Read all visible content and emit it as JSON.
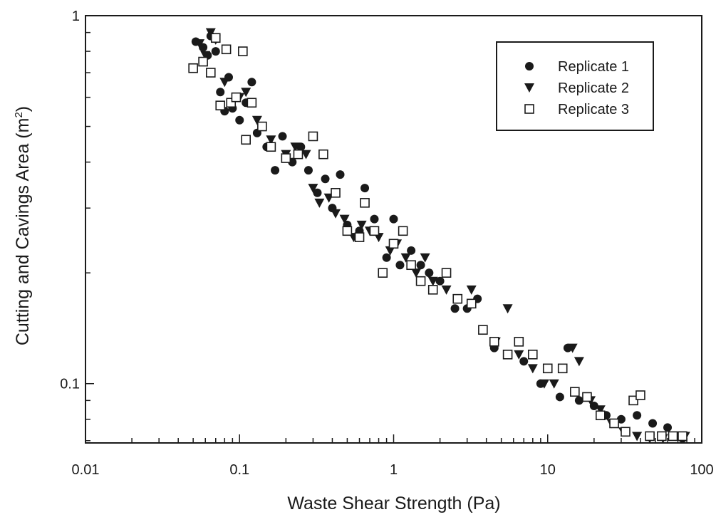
{
  "chart_data": {
    "type": "scatter",
    "xlabel": "Waste Shear Strength (Pa)",
    "ylabel": "Cutting and Cavings Area (m",
    "ylabel_sup": "2",
    "ylabel_close": ")",
    "x_scale": "log",
    "y_scale": "log",
    "xlim": [
      0.01,
      100
    ],
    "ylim": [
      0.069,
      1
    ],
    "x_ticks": [
      0.01,
      0.1,
      1,
      10,
      100
    ],
    "x_tick_labels": [
      "0.01",
      "0.1",
      "1",
      "10",
      "100"
    ],
    "y_ticks": [
      0.1,
      1
    ],
    "y_tick_labels": [
      "0.1",
      "1"
    ],
    "grid": false,
    "legend_position": "top-right",
    "series": [
      {
        "name": "Replicate 1",
        "marker": "circle-filled",
        "points": [
          [
            0.052,
            0.85
          ],
          [
            0.058,
            0.82
          ],
          [
            0.062,
            0.78
          ],
          [
            0.065,
            0.88
          ],
          [
            0.07,
            0.8
          ],
          [
            0.075,
            0.62
          ],
          [
            0.08,
            0.55
          ],
          [
            0.085,
            0.68
          ],
          [
            0.09,
            0.56
          ],
          [
            0.1,
            0.52
          ],
          [
            0.11,
            0.58
          ],
          [
            0.12,
            0.66
          ],
          [
            0.13,
            0.48
          ],
          [
            0.15,
            0.44
          ],
          [
            0.17,
            0.38
          ],
          [
            0.19,
            0.47
          ],
          [
            0.22,
            0.4
          ],
          [
            0.25,
            0.44
          ],
          [
            0.28,
            0.38
          ],
          [
            0.32,
            0.33
          ],
          [
            0.36,
            0.36
          ],
          [
            0.4,
            0.3
          ],
          [
            0.45,
            0.37
          ],
          [
            0.5,
            0.27
          ],
          [
            0.6,
            0.26
          ],
          [
            0.65,
            0.34
          ],
          [
            0.75,
            0.28
          ],
          [
            0.9,
            0.22
          ],
          [
            1.0,
            0.28
          ],
          [
            1.1,
            0.21
          ],
          [
            1.3,
            0.23
          ],
          [
            1.5,
            0.21
          ],
          [
            1.7,
            0.2
          ],
          [
            2.0,
            0.19
          ],
          [
            2.5,
            0.16
          ],
          [
            3.0,
            0.16
          ],
          [
            3.5,
            0.17
          ],
          [
            4.5,
            0.125
          ],
          [
            5.5,
            0.12
          ],
          [
            7.0,
            0.115
          ],
          [
            9.0,
            0.1
          ],
          [
            12.0,
            0.092
          ],
          [
            13.5,
            0.125
          ],
          [
            16.0,
            0.09
          ],
          [
            20.0,
            0.087
          ],
          [
            24.0,
            0.082
          ],
          [
            30.0,
            0.08
          ],
          [
            38.0,
            0.082
          ],
          [
            48.0,
            0.078
          ],
          [
            60.0,
            0.076
          ],
          [
            75.0,
            0.071
          ]
        ]
      },
      {
        "name": "Replicate 2",
        "marker": "triangle-down-filled",
        "points": [
          [
            0.055,
            0.84
          ],
          [
            0.06,
            0.78
          ],
          [
            0.065,
            0.9
          ],
          [
            0.07,
            0.86
          ],
          [
            0.08,
            0.66
          ],
          [
            0.09,
            0.58
          ],
          [
            0.1,
            0.6
          ],
          [
            0.11,
            0.62
          ],
          [
            0.13,
            0.52
          ],
          [
            0.14,
            0.5
          ],
          [
            0.16,
            0.46
          ],
          [
            0.2,
            0.42
          ],
          [
            0.23,
            0.44
          ],
          [
            0.27,
            0.42
          ],
          [
            0.3,
            0.34
          ],
          [
            0.33,
            0.31
          ],
          [
            0.38,
            0.32
          ],
          [
            0.42,
            0.29
          ],
          [
            0.48,
            0.28
          ],
          [
            0.55,
            0.25
          ],
          [
            0.62,
            0.27
          ],
          [
            0.7,
            0.26
          ],
          [
            0.8,
            0.25
          ],
          [
            0.95,
            0.23
          ],
          [
            1.05,
            0.24
          ],
          [
            1.2,
            0.22
          ],
          [
            1.4,
            0.2
          ],
          [
            1.6,
            0.22
          ],
          [
            1.8,
            0.19
          ],
          [
            2.2,
            0.18
          ],
          [
            2.6,
            0.17
          ],
          [
            3.2,
            0.18
          ],
          [
            3.8,
            0.14
          ],
          [
            4.6,
            0.13
          ],
          [
            5.5,
            0.16
          ],
          [
            6.5,
            0.12
          ],
          [
            8.0,
            0.11
          ],
          [
            9.5,
            0.1
          ],
          [
            11.0,
            0.1
          ],
          [
            14.5,
            0.125
          ],
          [
            16.0,
            0.115
          ],
          [
            19.0,
            0.09
          ],
          [
            22.0,
            0.085
          ],
          [
            26.0,
            0.078
          ],
          [
            31.0,
            0.074
          ],
          [
            38.0,
            0.072
          ],
          [
            46.0,
            0.071
          ],
          [
            56.0,
            0.071
          ],
          [
            68.0,
            0.072
          ],
          [
            78.0,
            0.072
          ]
        ]
      },
      {
        "name": "Replicate 3",
        "marker": "square-open",
        "points": [
          [
            0.05,
            0.72
          ],
          [
            0.058,
            0.75
          ],
          [
            0.065,
            0.7
          ],
          [
            0.07,
            0.87
          ],
          [
            0.075,
            0.57
          ],
          [
            0.082,
            0.81
          ],
          [
            0.088,
            0.58
          ],
          [
            0.095,
            0.6
          ],
          [
            0.105,
            0.8
          ],
          [
            0.11,
            0.46
          ],
          [
            0.12,
            0.58
          ],
          [
            0.14,
            0.5
          ],
          [
            0.16,
            0.44
          ],
          [
            0.2,
            0.41
          ],
          [
            0.24,
            0.42
          ],
          [
            0.3,
            0.47
          ],
          [
            0.35,
            0.42
          ],
          [
            0.42,
            0.33
          ],
          [
            0.5,
            0.26
          ],
          [
            0.6,
            0.25
          ],
          [
            0.65,
            0.31
          ],
          [
            0.75,
            0.26
          ],
          [
            0.85,
            0.2
          ],
          [
            1.0,
            0.24
          ],
          [
            1.15,
            0.26
          ],
          [
            1.3,
            0.21
          ],
          [
            1.5,
            0.19
          ],
          [
            1.8,
            0.18
          ],
          [
            2.2,
            0.2
          ],
          [
            2.6,
            0.17
          ],
          [
            3.2,
            0.165
          ],
          [
            3.8,
            0.14
          ],
          [
            4.5,
            0.13
          ],
          [
            5.5,
            0.12
          ],
          [
            6.5,
            0.13
          ],
          [
            8.0,
            0.12
          ],
          [
            10.0,
            0.11
          ],
          [
            12.5,
            0.11
          ],
          [
            15.0,
            0.095
          ],
          [
            18.0,
            0.092
          ],
          [
            22.0,
            0.082
          ],
          [
            27.0,
            0.078
          ],
          [
            32.0,
            0.074
          ],
          [
            36.0,
            0.09
          ],
          [
            40.0,
            0.093
          ],
          [
            46.0,
            0.072
          ],
          [
            55.0,
            0.072
          ],
          [
            65.0,
            0.072
          ],
          [
            75.0,
            0.072
          ]
        ]
      }
    ]
  }
}
